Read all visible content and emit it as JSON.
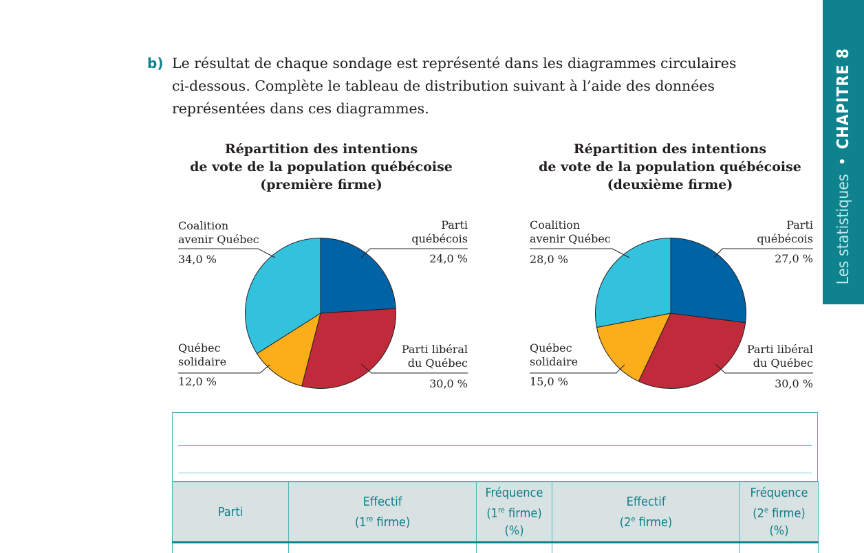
{
  "sidebar": {
    "chapter": "CHAPITRE 8",
    "separator": "•",
    "topic": "Les statistiques"
  },
  "question": {
    "label": "b)",
    "lines": [
      "Le résultat de chaque sondage est représenté dans les diagrammes circulaires",
      "ci-dessous. Complète le tableau de distribution suivant à l’aide des données",
      "représentées dans ces diagrammes."
    ]
  },
  "chart_data": [
    {
      "type": "pie",
      "title_lines": [
        "Répartition des intentions",
        "de vote de la population québécoise",
        "(première firme)"
      ],
      "slices": [
        {
          "label_lines": [
            "Parti",
            "québécois"
          ],
          "value": 24.0,
          "value_text": "24,0 %",
          "color": "#0063a6"
        },
        {
          "label_lines": [
            "Parti libéral",
            "du Québec"
          ],
          "value": 30.0,
          "value_text": "30,0 %",
          "color": "#c02a3a"
        },
        {
          "label_lines": [
            "Québec",
            "solidaire"
          ],
          "value": 12.0,
          "value_text": "12,0 %",
          "color": "#fbae1a"
        },
        {
          "label_lines": [
            "Coalition",
            "avenir Québec"
          ],
          "value": 34.0,
          "value_text": "34,0 %",
          "color": "#33c2de"
        }
      ]
    },
    {
      "type": "pie",
      "title_lines": [
        "Répartition des intentions",
        "de vote de la population québécoise",
        "(deuxième firme)"
      ],
      "slices": [
        {
          "label_lines": [
            "Parti",
            "québécois"
          ],
          "value": 27.0,
          "value_text": "27,0 %",
          "color": "#0063a6"
        },
        {
          "label_lines": [
            "Parti libéral",
            "du Québec"
          ],
          "value": 30.0,
          "value_text": "30,0 %",
          "color": "#c02a3a"
        },
        {
          "label_lines": [
            "Québec",
            "solidaire"
          ],
          "value": 15.0,
          "value_text": "15,0 %",
          "color": "#fbae1a"
        },
        {
          "label_lines": [
            "Coalition",
            "avenir Québec"
          ],
          "value": 28.0,
          "value_text": "28,0 %",
          "color": "#33c2de"
        }
      ]
    }
  ],
  "table": {
    "headers": [
      {
        "text": "Parti"
      },
      {
        "text": "Effectif",
        "sub_pre": "(1",
        "sup": "re",
        "sub_post": " firme)"
      },
      {
        "text": "Fréquence",
        "sub_pre": "(1",
        "sup": "re",
        "sub_post": " firme)",
        "tail": "(%)"
      },
      {
        "text": "Effectif",
        "sub_pre": "(2",
        "sup": "e",
        "sub_post": " firme)"
      },
      {
        "text": "Fréquence",
        "sub_pre": "(2",
        "sup": "e",
        "sub_post": " firme)",
        "tail": "(%)"
      }
    ]
  }
}
